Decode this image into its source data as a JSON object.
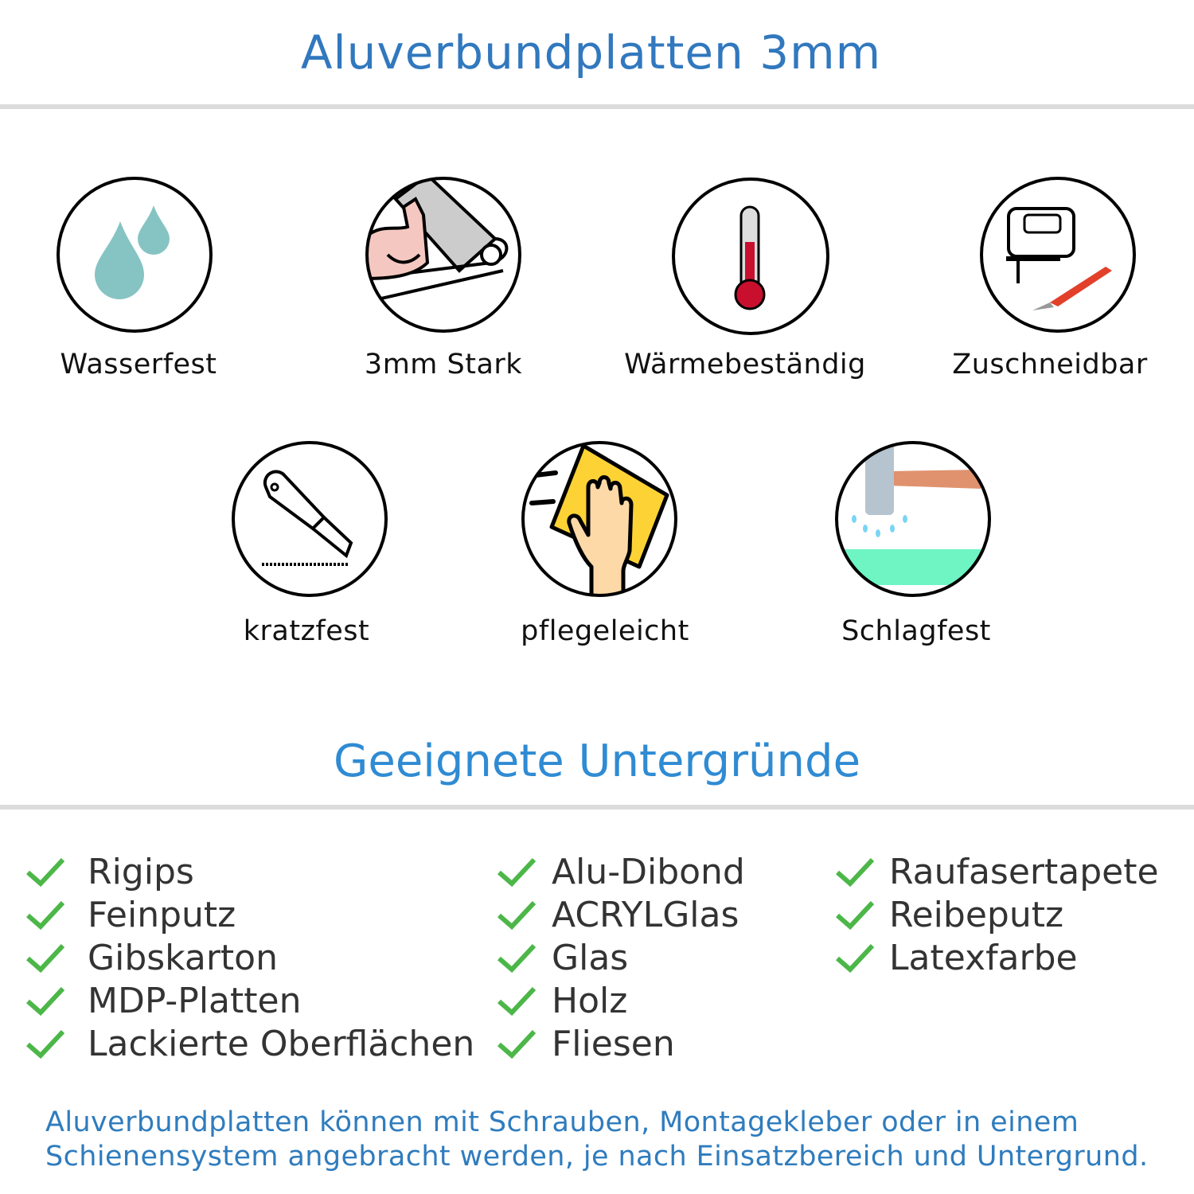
{
  "header": {
    "title": "Aluverbundplatten 3mm"
  },
  "features": [
    {
      "label": "Wasserfest",
      "icon": "water-drops-icon"
    },
    {
      "label": "3mm Stark",
      "icon": "strong-arm-icon"
    },
    {
      "label": "Wärmebeständig",
      "icon": "thermometer-icon"
    },
    {
      "label": "Zuschneidbar",
      "icon": "jigsaw-knife-icon"
    },
    {
      "label": "kratzfest",
      "icon": "cutter-knife-icon"
    },
    {
      "label": "pflegeleicht",
      "icon": "wiping-hand-icon"
    },
    {
      "label": "Schlagfest",
      "icon": "hammer-icon"
    }
  ],
  "substrates": {
    "title": "Geeignete Untergründe",
    "columns": [
      [
        "Rigips",
        "Feinputz",
        "Gibskarton",
        "MDP-Platten",
        "Lackierte Oberflächen"
      ],
      [
        "Alu-Dibond",
        "ACRYLGlas",
        "Glas",
        "Holz",
        "Fliesen"
      ],
      [
        "Raufasertapete",
        "Reibeputz",
        "Latexfarbe"
      ]
    ],
    "check_color": "#4cb748"
  },
  "footer": {
    "line1": "Aluverbundplatten können mit Schrauben, Montagekleber oder in einem",
    "line2": "Schienensystem angebracht werden, je nach Einsatzbereich und Untergrund."
  },
  "colors": {
    "title": "#3178be",
    "subtitle": "#2f8bd3",
    "footer": "#2f7cbe"
  }
}
